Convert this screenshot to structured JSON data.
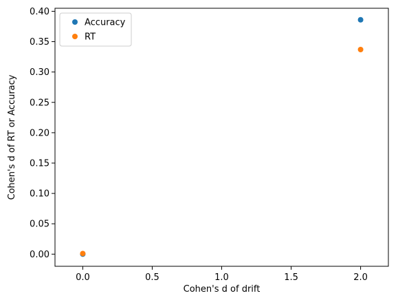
{
  "chart_data": {
    "type": "scatter",
    "title": "",
    "xlabel": "Cohen's d of drift",
    "ylabel": "Cohen's d of RT or Accuracy",
    "xlim": [
      -0.2,
      2.2
    ],
    "ylim": [
      -0.02,
      0.405
    ],
    "xticks": [
      0.0,
      0.5,
      1.0,
      1.5,
      2.0
    ],
    "xtick_labels": [
      "0.0",
      "0.5",
      "1.0",
      "1.5",
      "2.0"
    ],
    "yticks": [
      0.0,
      0.05,
      0.1,
      0.15,
      0.2,
      0.25,
      0.3,
      0.35,
      0.4
    ],
    "ytick_labels": [
      "0.00",
      "0.05",
      "0.10",
      "0.15",
      "0.20",
      "0.25",
      "0.30",
      "0.35",
      "0.40"
    ],
    "grid": false,
    "legend_position": "upper-left",
    "series": [
      {
        "name": "Accuracy",
        "color": "#1f77b4",
        "x": [
          0.0,
          2.0
        ],
        "y": [
          0.0,
          0.386
        ]
      },
      {
        "name": "RT",
        "color": "#ff7f0e",
        "x": [
          0.0,
          2.0
        ],
        "y": [
          0.001,
          0.337
        ]
      }
    ]
  }
}
